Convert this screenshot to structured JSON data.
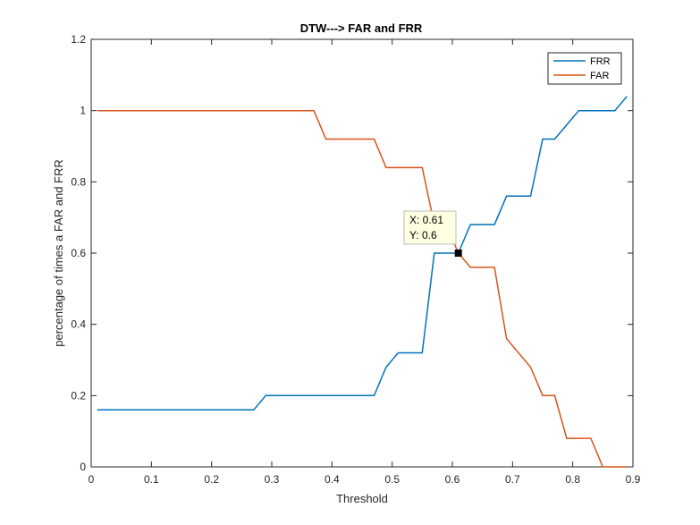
{
  "chart_data": {
    "type": "line",
    "title": "DTW---> FAR and FRR",
    "xlabel": "Threshold",
    "ylabel": "percentage of times a FAR and FRR",
    "xlim": [
      0,
      0.9
    ],
    "ylim": [
      0,
      1.2
    ],
    "xticks": [
      0,
      0.1,
      0.2,
      0.3,
      0.4,
      0.5,
      0.6,
      0.7,
      0.8,
      0.9
    ],
    "xtick_labels": [
      "0",
      "0.1",
      "0.2",
      "0.3",
      "0.4",
      "0.5",
      "0.6",
      "0.7",
      "0.8",
      "0.9"
    ],
    "yticks": [
      0,
      0.2,
      0.4,
      0.6,
      0.8,
      1,
      1.2
    ],
    "ytick_labels": [
      "0",
      "0.2",
      "0.4",
      "0.6",
      "0.8",
      "1",
      "1.2"
    ],
    "grid": false,
    "legend_position": "top-right",
    "series": [
      {
        "name": "FRR",
        "color": "#0072BD",
        "x": [
          0.01,
          0.27,
          0.29,
          0.47,
          0.49,
          0.51,
          0.55,
          0.57,
          0.61,
          0.63,
          0.67,
          0.69,
          0.73,
          0.75,
          0.77,
          0.79,
          0.81,
          0.87,
          0.89
        ],
        "y": [
          0.16,
          0.16,
          0.2,
          0.2,
          0.28,
          0.32,
          0.32,
          0.6,
          0.6,
          0.68,
          0.68,
          0.76,
          0.76,
          0.92,
          0.92,
          0.96,
          1.0,
          1.0,
          1.04
        ]
      },
      {
        "name": "FAR",
        "color": "#D95319",
        "x": [
          0.01,
          0.37,
          0.39,
          0.47,
          0.49,
          0.55,
          0.57,
          0.59,
          0.61,
          0.63,
          0.67,
          0.69,
          0.73,
          0.75,
          0.77,
          0.79,
          0.83,
          0.85,
          0.89
        ],
        "y": [
          1.0,
          1.0,
          0.92,
          0.92,
          0.84,
          0.84,
          0.68,
          0.68,
          0.6,
          0.56,
          0.56,
          0.36,
          0.28,
          0.2,
          0.2,
          0.08,
          0.08,
          0.0,
          0.0
        ]
      }
    ],
    "datatip": {
      "x_text": "X: 0.61",
      "y_text": "Y: 0.6",
      "x": 0.61,
      "y": 0.6
    }
  }
}
